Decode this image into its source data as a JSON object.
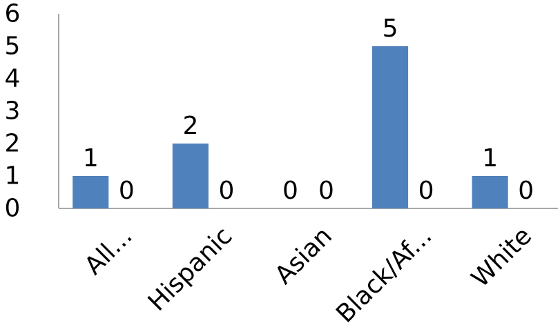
{
  "chart_data": {
    "type": "bar",
    "categories": [
      "All...",
      "Hispanic",
      "Asian",
      "Black/Af...",
      "White"
    ],
    "series": [
      {
        "values": [
          1,
          2,
          0,
          5,
          1
        ],
        "color": "#4f81bd"
      },
      {
        "values": [
          0,
          0,
          0,
          0,
          0
        ],
        "color": "#c0504d"
      }
    ],
    "ylim": [
      0,
      6
    ],
    "yticks": [
      "0",
      "1",
      "2",
      "3",
      "4",
      "5",
      "6"
    ],
    "data_labels": true,
    "grid": false,
    "legend": "none"
  }
}
